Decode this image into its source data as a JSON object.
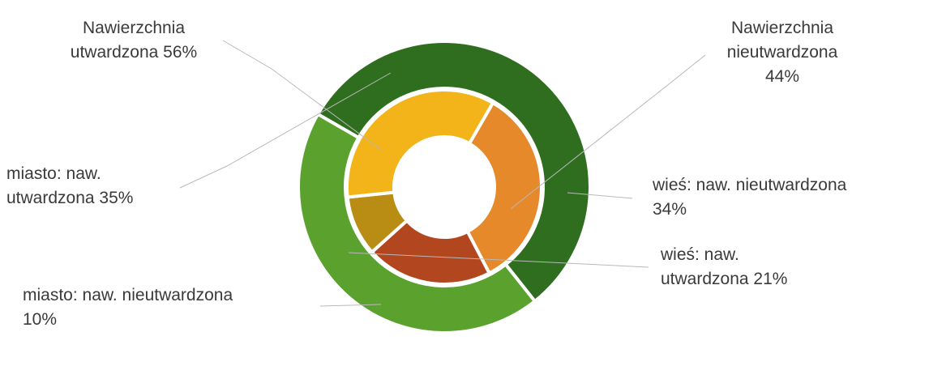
{
  "chart_data": {
    "type": "pie",
    "subtype": "double-donut",
    "title": "",
    "outer_ring": [
      {
        "name": "Nawierzchnia utwardzona",
        "value": 56,
        "color": "#2f6e1f"
      },
      {
        "name": "Nawierzchnia nieutwardzona",
        "value": 44,
        "color": "#5aa12e"
      }
    ],
    "inner_ring": [
      {
        "name": "wieś: naw. nieutwardzona",
        "value": 34,
        "color": "#e5892a"
      },
      {
        "name": "wieś: naw. utwardzona",
        "value": 21,
        "color": "#b2461f"
      },
      {
        "name": "miasto: naw. nieutwardzona",
        "value": 10,
        "color": "#b98c14"
      },
      {
        "name": "miasto: naw. utwardzona",
        "value": 35,
        "color": "#f2b418"
      }
    ],
    "labels": {
      "outer_paved": [
        "Nawierzchnia",
        "utwardzona 56%"
      ],
      "outer_unpaved": [
        "Nawierzchnia",
        "nieutwardzona",
        "44%"
      ],
      "city_paved": [
        "miasto: naw.",
        "utwardzona 35%"
      ],
      "village_unpaved": [
        "wieś: naw. nieutwardzona",
        "34%"
      ],
      "village_paved": [
        "wieś: naw.",
        "utwardzona 21%"
      ],
      "city_unpaved": [
        "miasto: naw. nieutwardzona",
        "10%"
      ]
    },
    "legend": "none"
  }
}
